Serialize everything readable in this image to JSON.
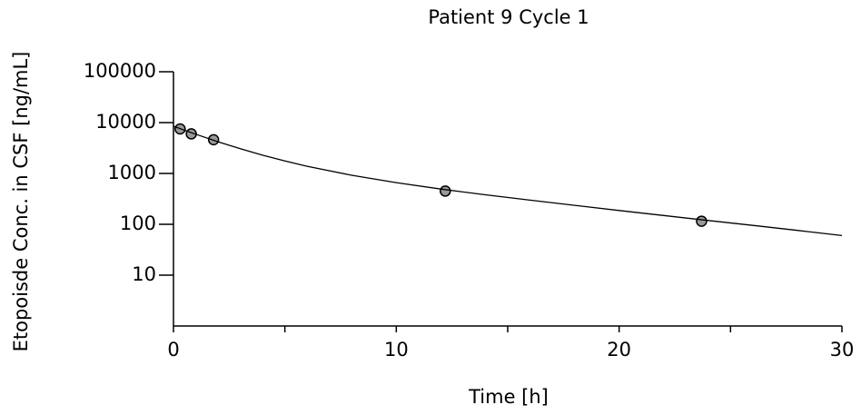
{
  "chart_data": {
    "type": "scatter",
    "title": "Patient 9  Cycle 1",
    "xlabel": "Time [h]",
    "ylabel": "Etopoisde Conc. in CSF [ng/mL]",
    "xlim": [
      0,
      30
    ],
    "ylim": [
      1,
      100000
    ],
    "log_y": true,
    "xticks": [
      0,
      10,
      20,
      30
    ],
    "xminorticks": [
      5,
      15,
      25
    ],
    "yticks": [
      10,
      100,
      1000,
      10000,
      100000
    ],
    "series": [
      {
        "type": "scatter",
        "color": "#000000",
        "x": [
          0.3,
          0.8,
          1.8,
          12.2,
          23.7
        ],
        "values": [
          7500,
          6000,
          4600,
          450,
          115
        ]
      },
      {
        "type": "line",
        "color": "#000000",
        "x": [
          0,
          1,
          2,
          3,
          4,
          5,
          6,
          8,
          10,
          12,
          14,
          16,
          18,
          20,
          22,
          24,
          26,
          28,
          30
        ],
        "values": [
          8486,
          5910,
          4200,
          3062,
          2289,
          1757,
          1384,
          921,
          659,
          494,
          381,
          299,
          236,
          187,
          149,
          119,
          95,
          76,
          60
        ]
      }
    ]
  }
}
